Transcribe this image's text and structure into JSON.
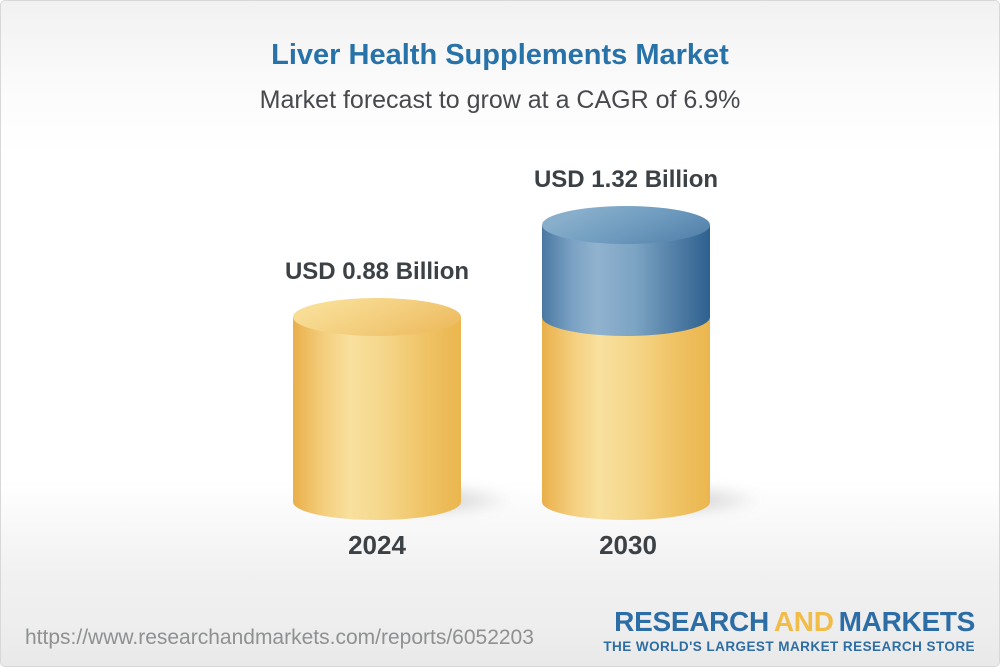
{
  "header": {
    "title": "Liver Health Supplements Market",
    "subtitle": "Market forecast to grow at a CAGR of 6.9%"
  },
  "chart_data": {
    "type": "bar",
    "variant": "3d-cylinder",
    "title": "Liver Health Supplements Market",
    "subtitle": "Market forecast to grow at a CAGR of 6.9%",
    "cagr_percent": 6.9,
    "unit": "USD Billion",
    "categories": [
      "2024",
      "2030"
    ],
    "values": [
      0.88,
      1.32
    ],
    "value_labels": [
      "USD 0.88 Billion",
      "USD 1.32 Billion"
    ],
    "base_value": 0.88,
    "growth_value": 0.44,
    "axes_visible": false,
    "grid": false,
    "legend": "none",
    "colors": {
      "base_segment": "#F0C266",
      "growth_segment": "#5585AF"
    }
  },
  "footer": {
    "url": "https://www.researchandmarkets.com/reports/6052203",
    "logo": {
      "research": "RESEARCH",
      "and": "AND",
      "markets": "MARKETS",
      "tagline": "THE WORLD'S LARGEST MARKET RESEARCH STORE"
    }
  },
  "colors": {
    "title_blue": "#2772A8",
    "subtitle_gray": "#47494D",
    "label_dark": "#3C4145",
    "bar_yellow": "#F0C266",
    "bar_blue": "#5585AF",
    "logo_blue": "#2D6DA5",
    "logo_yellow": "#F2BC49",
    "url_gray": "#8E9092",
    "frame_border": "#D8D8D8"
  }
}
